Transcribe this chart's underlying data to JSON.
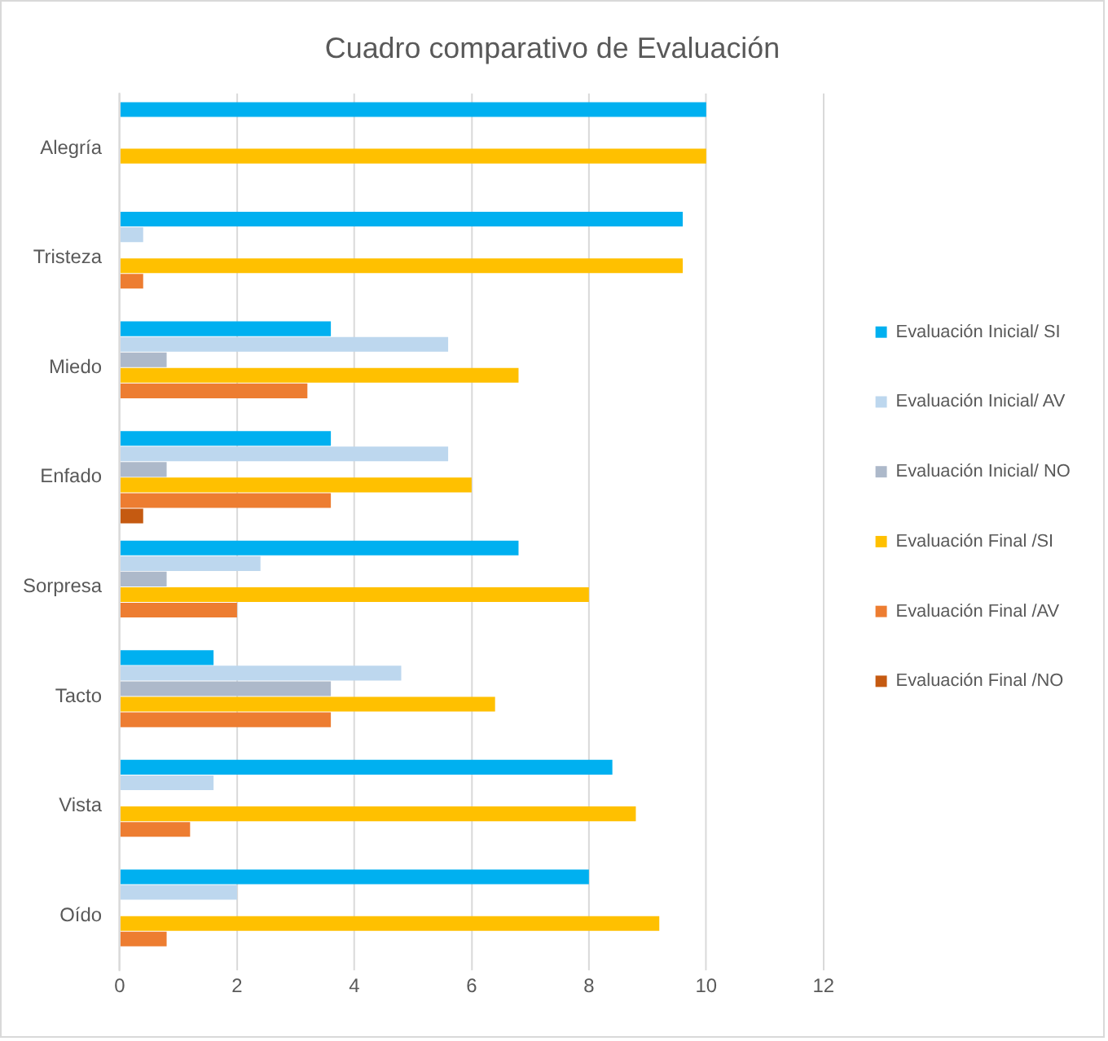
{
  "chart_data": {
    "type": "bar",
    "orientation": "horizontal",
    "title": "Cuadro comparativo de Evaluación",
    "categories": [
      "Alegría",
      "Tristeza",
      "Miedo",
      "Enfado",
      "Sorpresa",
      "Tacto",
      "Vista",
      "Oído"
    ],
    "series": [
      {
        "name": "Evaluación Inicial/ SI",
        "color": "#00b0f0",
        "values": [
          10,
          9.6,
          3.6,
          3.6,
          6.8,
          1.6,
          8.4,
          8
        ]
      },
      {
        "name": "Evaluación Inicial/ AV",
        "color": "#bdd7ee",
        "values": [
          0,
          0.4,
          5.6,
          5.6,
          2.4,
          4.8,
          1.6,
          2
        ]
      },
      {
        "name": "Evaluación Inicial/ NO",
        "color": "#adb9ca",
        "values": [
          0,
          0,
          0.8,
          0.8,
          0.8,
          3.6,
          0,
          0
        ]
      },
      {
        "name": "Evaluación Final /SI",
        "color": "#ffc000",
        "values": [
          10,
          9.6,
          6.8,
          6,
          8,
          6.4,
          8.8,
          9.2
        ]
      },
      {
        "name": "Evaluación Final /AV",
        "color": "#ed7d31",
        "values": [
          0,
          0.4,
          3.2,
          3.6,
          2,
          3.6,
          1.2,
          0.8
        ]
      },
      {
        "name": "Evaluación Final /NO",
        "color": "#c55a11",
        "values": [
          0,
          0,
          0,
          0.4,
          0,
          0,
          0,
          0
        ]
      }
    ],
    "xlim": [
      0,
      12
    ],
    "xticks": [
      0,
      2,
      4,
      6,
      8,
      10,
      12
    ],
    "grid": "x",
    "legend": "right"
  }
}
